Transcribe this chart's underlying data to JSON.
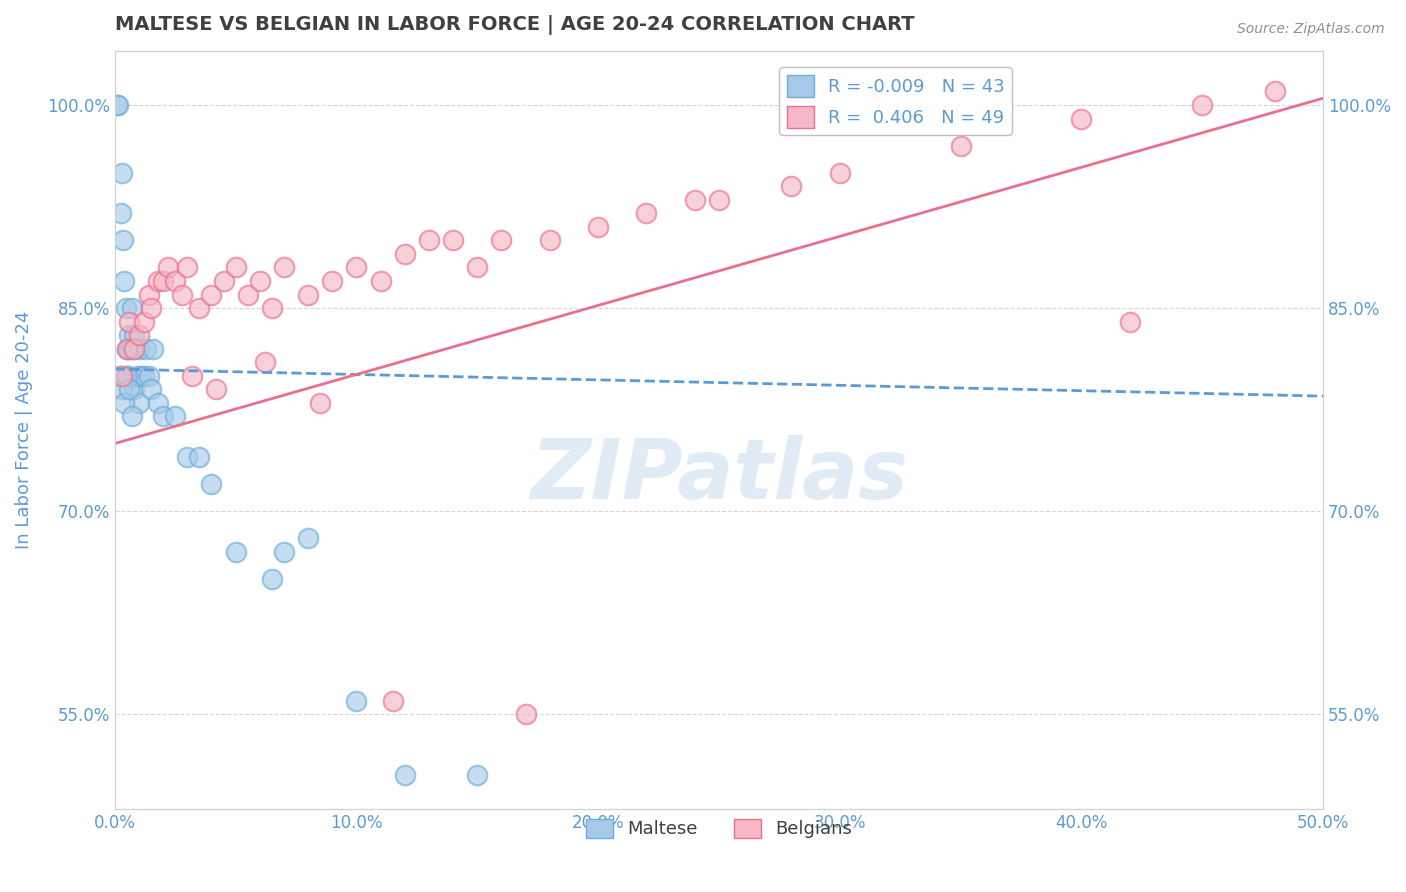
{
  "title": "MALTESE VS BELGIAN IN LABOR FORCE | AGE 20-24 CORRELATION CHART",
  "source_text": "Source: ZipAtlas.com",
  "ylabel": "In Labor Force | Age 20-24",
  "xlim": [
    0.0,
    50.0
  ],
  "ylim": [
    48.0,
    104.0
  ],
  "yticks": [
    55.0,
    70.0,
    85.0,
    100.0
  ],
  "xticks": [
    0.0,
    10.0,
    20.0,
    30.0,
    40.0,
    50.0
  ],
  "legend_entry1": "R = -0.009   N = 43",
  "legend_entry2": "R =  0.406   N = 49",
  "legend_label1": "Maltese",
  "legend_label2": "Belgians",
  "blue_color": "#A8CAEA",
  "pink_color": "#F5B8C4",
  "blue_edge_color": "#6BAED6",
  "pink_edge_color": "#E87090",
  "blue_line_color": "#5B9BD5",
  "pink_line_color": "#E8708A",
  "background_color": "#FFFFFF",
  "grid_color": "#CCCCCC",
  "title_color": "#404040",
  "axis_label_color": "#5B9BD5",
  "watermark_text": "ZIPatlas",
  "maltese_x": [
    0.1,
    0.15,
    0.2,
    0.25,
    0.3,
    0.35,
    0.4,
    0.45,
    0.5,
    0.5,
    0.6,
    0.6,
    0.7,
    0.7,
    0.8,
    0.8,
    0.9,
    1.0,
    1.0,
    1.1,
    1.2,
    1.3,
    1.4,
    1.5,
    1.6,
    1.8,
    2.0,
    2.5,
    3.0,
    3.5,
    4.0,
    5.0,
    6.5,
    7.0,
    8.0,
    10.0,
    12.0,
    15.0,
    0.3,
    0.4,
    0.5,
    0.6,
    0.7
  ],
  "maltese_y": [
    100.0,
    100.0,
    80.0,
    92.0,
    95.0,
    90.0,
    87.0,
    85.0,
    82.0,
    80.0,
    83.0,
    82.0,
    85.0,
    82.0,
    83.0,
    79.0,
    80.0,
    82.0,
    78.0,
    80.0,
    80.0,
    82.0,
    80.0,
    79.0,
    82.0,
    78.0,
    77.0,
    77.0,
    74.0,
    74.0,
    72.0,
    67.0,
    65.0,
    67.0,
    68.0,
    56.0,
    50.5,
    50.5,
    79.0,
    78.0,
    80.0,
    79.0,
    77.0
  ],
  "belgian_x": [
    0.3,
    0.5,
    0.6,
    0.8,
    1.0,
    1.2,
    1.4,
    1.5,
    1.8,
    2.0,
    2.2,
    2.5,
    2.8,
    3.0,
    3.5,
    4.0,
    4.5,
    5.0,
    5.5,
    6.0,
    6.5,
    7.0,
    8.0,
    9.0,
    10.0,
    11.0,
    12.0,
    13.0,
    14.0,
    15.0,
    16.0,
    18.0,
    20.0,
    22.0,
    24.0,
    25.0,
    28.0,
    30.0,
    35.0,
    40.0,
    45.0,
    48.0,
    3.2,
    4.2,
    6.2,
    8.5,
    11.5,
    17.0,
    42.0
  ],
  "belgian_y": [
    80.0,
    82.0,
    84.0,
    82.0,
    83.0,
    84.0,
    86.0,
    85.0,
    87.0,
    87.0,
    88.0,
    87.0,
    86.0,
    88.0,
    85.0,
    86.0,
    87.0,
    88.0,
    86.0,
    87.0,
    85.0,
    88.0,
    86.0,
    87.0,
    88.0,
    87.0,
    89.0,
    90.0,
    90.0,
    88.0,
    90.0,
    90.0,
    91.0,
    92.0,
    93.0,
    93.0,
    94.0,
    95.0,
    97.0,
    99.0,
    100.0,
    101.0,
    80.0,
    79.0,
    81.0,
    78.0,
    56.0,
    55.0,
    84.0
  ],
  "blue_trend_x0": 0.0,
  "blue_trend_y0": 80.5,
  "blue_trend_x1": 50.0,
  "blue_trend_y1": 78.5,
  "pink_trend_x0": 0.0,
  "pink_trend_y0": 75.0,
  "pink_trend_x1": 50.0,
  "pink_trend_y1": 100.5
}
